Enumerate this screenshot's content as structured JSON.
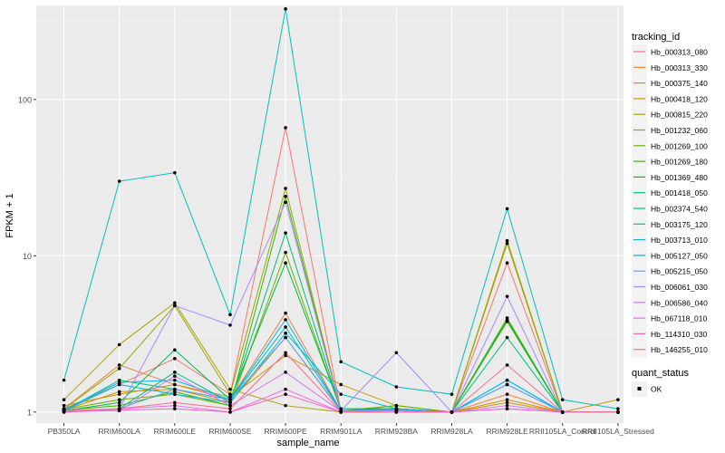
{
  "chart_data": {
    "type": "line",
    "xlabel": "sample_name",
    "ylabel": "FPKM + 1",
    "y_scale": "log10",
    "ylim": [
      0.85,
      400
    ],
    "y_ticks": [
      1,
      10,
      100
    ],
    "y_tick_labels": [
      "1",
      "10",
      "100"
    ],
    "grid": true,
    "categories": [
      "PB350LA",
      "RRIM600LA",
      "RRIM600LE",
      "RRIM600SE",
      "RRIM600PE",
      "RRIM901LA",
      "RRIM928BA",
      "RRIM928LA",
      "RRIM928LE",
      "RRII105LA_Control",
      "RRII105LA_Stressed"
    ],
    "legend": {
      "title": "tracking_id",
      "position": "right",
      "quant_status_title": "quant_status",
      "quant_status_entries": [
        "OK"
      ]
    },
    "series": [
      {
        "name": "Hb_000313_080",
        "color": "#F8766D",
        "values": [
          1.05,
          1.5,
          2.2,
          1.3,
          66,
          1.02,
          1.05,
          1.0,
          9.0,
          1.0,
          1.0
        ]
      },
      {
        "name": "Hb_000313_330",
        "color": "#EC8239",
        "values": [
          1.05,
          2.0,
          1.5,
          1.2,
          4.3,
          1.02,
          1.05,
          1.0,
          1.3,
          1.0,
          1.0
        ]
      },
      {
        "name": "Hb_000375_140",
        "color": "#DB8E00",
        "values": [
          1.03,
          1.35,
          1.4,
          1.15,
          3.0,
          1.01,
          1.03,
          1.0,
          1.2,
          1.0,
          1.0
        ]
      },
      {
        "name": "Hb_000418_120",
        "color": "#C79800",
        "values": [
          1.1,
          1.3,
          1.5,
          1.25,
          2.3,
          1.5,
          1.1,
          1.0,
          1.15,
          1.0,
          1.2
        ]
      },
      {
        "name": "Hb_000815_220",
        "color": "#AFA100",
        "values": [
          1.2,
          2.7,
          5.0,
          1.4,
          1.1,
          1.0,
          1.1,
          1.0,
          12.5,
          1.0,
          1.0
        ]
      },
      {
        "name": "Hb_001232_060",
        "color": "#94A900",
        "values": [
          1.05,
          1.9,
          4.8,
          1.3,
          27,
          1.02,
          1.05,
          1.0,
          12,
          1.0,
          1.0
        ]
      },
      {
        "name": "Hb_001269_100",
        "color": "#72B000",
        "values": [
          1.04,
          1.2,
          1.3,
          1.1,
          10.5,
          1.02,
          1.1,
          1.0,
          4.0,
          1.0,
          1.0
        ]
      },
      {
        "name": "Hb_001269_180",
        "color": "#3DB600",
        "values": [
          1.03,
          1.1,
          1.35,
          1.1,
          24,
          1.02,
          1.05,
          1.0,
          3.8,
          1.0,
          1.0
        ]
      },
      {
        "name": "Hb_001369_480",
        "color": "#00BA42",
        "values": [
          1.02,
          1.15,
          2.5,
          1.2,
          9.0,
          1.05,
          1.05,
          1.0,
          3.9,
          1.0,
          1.0
        ]
      },
      {
        "name": "Hb_001418_050",
        "color": "#00BD77",
        "values": [
          1.01,
          1.05,
          1.8,
          1.15,
          14,
          1.02,
          1.03,
          1.0,
          3.0,
          1.0,
          1.0
        ]
      },
      {
        "name": "Hb_002374_540",
        "color": "#00BF9C",
        "values": [
          1.02,
          1.6,
          1.4,
          1.2,
          3.5,
          1.02,
          1.03,
          1.0,
          1.5,
          1.0,
          1.0
        ]
      },
      {
        "name": "Hb_003175_120",
        "color": "#00BFBC",
        "values": [
          1.6,
          30,
          34,
          4.2,
          380,
          2.1,
          1.45,
          1.3,
          20,
          1.2,
          1.05
        ]
      },
      {
        "name": "Hb_003713_010",
        "color": "#00BBD8",
        "values": [
          1.02,
          1.5,
          1.3,
          1.15,
          3.2,
          1.3,
          1.05,
          1.0,
          1.6,
          1.0,
          1.0
        ]
      },
      {
        "name": "Hb_005127_050",
        "color": "#00B2F3",
        "values": [
          1.03,
          1.55,
          1.6,
          1.2,
          3.9,
          1.02,
          1.05,
          1.0,
          1.6,
          1.0,
          1.0
        ]
      },
      {
        "name": "Hb_005215_050",
        "color": "#619CFF",
        "values": [
          1.01,
          1.05,
          1.4,
          1.2,
          3.0,
          1.02,
          1.03,
          1.0,
          1.5,
          1.0,
          1.0
        ]
      },
      {
        "name": "Hb_006061_030",
        "color": "#A58AFF",
        "values": [
          1.02,
          1.05,
          4.8,
          3.6,
          22,
          1.02,
          2.4,
          1.0,
          5.5,
          1.0,
          1.0
        ]
      },
      {
        "name": "Hb_006586_040",
        "color": "#D078FF",
        "values": [
          1.01,
          1.02,
          1.7,
          1.1,
          1.8,
          1.01,
          1.02,
          1.0,
          1.1,
          1.0,
          1.0
        ]
      },
      {
        "name": "Hb_067118_010",
        "color": "#EE6AEC",
        "values": [
          1.0,
          1.05,
          1.1,
          1.0,
          1.4,
          1.0,
          1.0,
          1.0,
          1.05,
          1.0,
          1.0
        ]
      },
      {
        "name": "Hb_114310_030",
        "color": "#FF62BC",
        "values": [
          1.0,
          1.03,
          1.05,
          1.0,
          1.3,
          1.0,
          1.0,
          1.0,
          1.05,
          1.0,
          1.0
        ]
      },
      {
        "name": "Hb_146255_010",
        "color": "#FE6D8D",
        "values": [
          1.02,
          1.05,
          1.15,
          1.05,
          2.4,
          1.0,
          1.02,
          1.0,
          2.0,
          1.0,
          1.0
        ]
      }
    ]
  }
}
